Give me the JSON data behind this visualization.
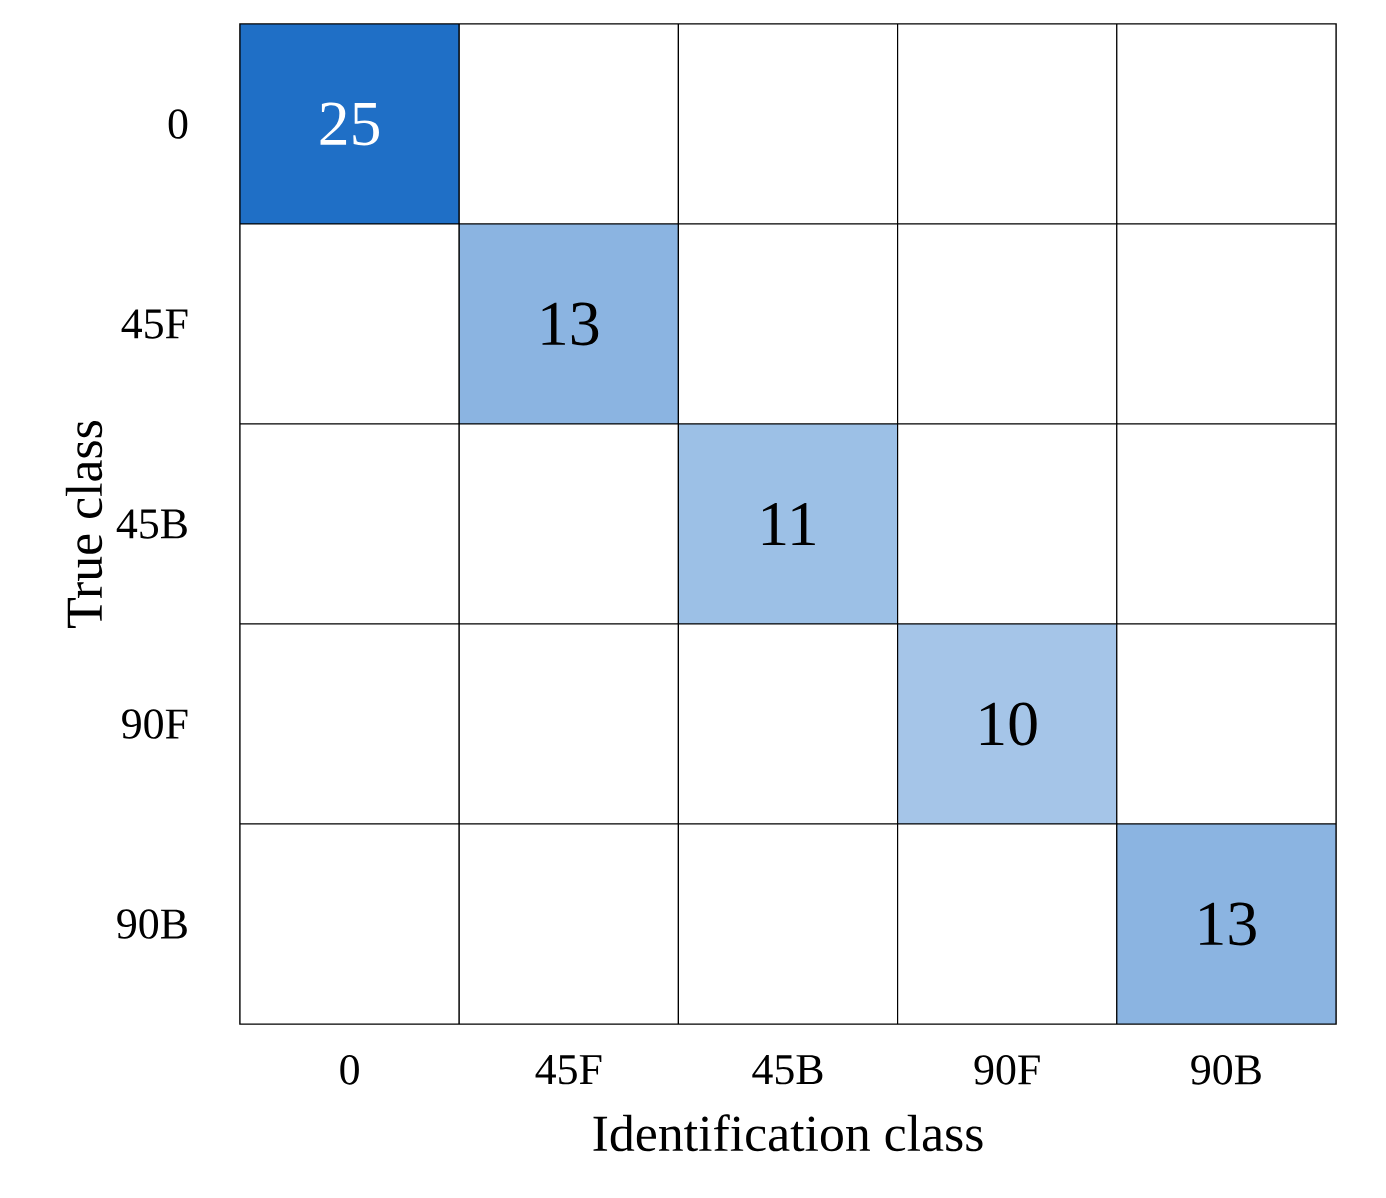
{
  "chart_data": {
    "type": "heatmap",
    "xlabel": "Identification class",
    "ylabel": "True class",
    "categories": [
      "0",
      "45F",
      "45B",
      "90F",
      "90B"
    ],
    "y_categories": [
      "0",
      "45F",
      "45B",
      "90F",
      "90B"
    ],
    "cells": [
      [
        25,
        null,
        null,
        null,
        null
      ],
      [
        null,
        13,
        null,
        null,
        null
      ],
      [
        null,
        null,
        11,
        null,
        null
      ],
      [
        null,
        null,
        null,
        10,
        null
      ],
      [
        null,
        null,
        null,
        null,
        13
      ]
    ],
    "data_labels": true
  }
}
